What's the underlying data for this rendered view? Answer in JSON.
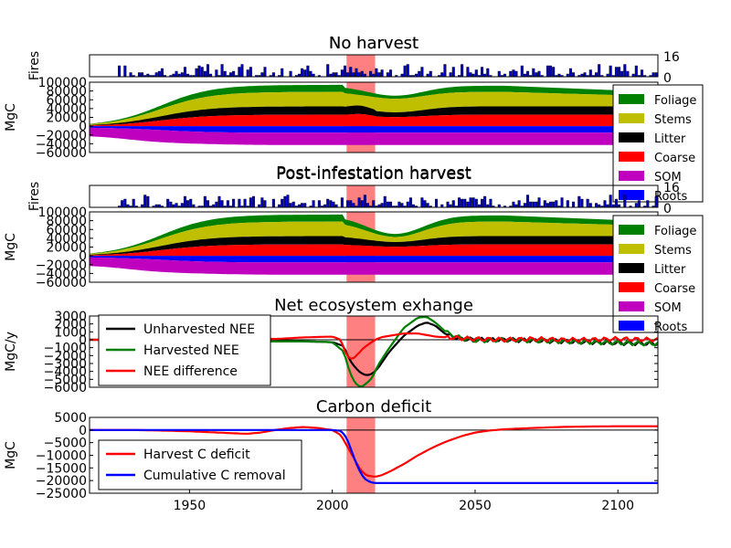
{
  "chart_data": [
    {
      "id": "fires1",
      "type": "bar",
      "ylabel": "Fires",
      "ylim": [
        0,
        16
      ],
      "right_ticks": [
        "16",
        "0"
      ]
    },
    {
      "id": "noharvest",
      "type": "area",
      "title": "No harvest",
      "ylabel": "MgC",
      "ylim": [
        -60000,
        100000
      ],
      "yticks": [
        100000,
        80000,
        60000,
        40000,
        20000,
        0,
        -20000,
        -40000,
        -60000
      ],
      "ytick_labels": [
        "100000",
        "80000",
        "60000",
        "40000",
        "20000",
        "0",
        "−20000",
        "−40000",
        "−60000"
      ],
      "legend": [
        "Foliage",
        "Stems",
        "Litter",
        "Coarse",
        "SOM",
        "Roots"
      ],
      "legend_colors": [
        "#008000",
        "#bfbf00",
        "#000000",
        "#ff0000",
        "#bf00bf",
        "#0000ff"
      ]
    },
    {
      "id": "fires2",
      "type": "bar",
      "ylabel": "Fires",
      "ylim": [
        0,
        16
      ],
      "right_ticks": [
        "16",
        "0"
      ]
    },
    {
      "id": "harvest",
      "type": "area",
      "title": "Post-infestation harvest",
      "ylabel": "MgC",
      "ylim": [
        -60000,
        100000
      ],
      "yticks": [
        100000,
        80000,
        60000,
        40000,
        20000,
        0,
        -20000,
        -40000,
        -60000
      ],
      "ytick_labels": [
        "100000",
        "80000",
        "60000",
        "40000",
        "20000",
        "0",
        "−20000",
        "−40000",
        "−60000"
      ],
      "legend": [
        "Foliage",
        "Stems",
        "Litter",
        "Coarse",
        "SOM",
        "Roots"
      ],
      "legend_colors": [
        "#008000",
        "#bfbf00",
        "#000000",
        "#ff0000",
        "#bf00bf",
        "#0000ff"
      ]
    },
    {
      "id": "nee",
      "type": "line",
      "title": "Net ecosystem exhange",
      "ylabel": "MgC/y",
      "ylim": [
        -6000,
        3000
      ],
      "yticks": [
        3000,
        2000,
        1000,
        0,
        -1000,
        -2000,
        -3000,
        -4000,
        -5000,
        -6000
      ],
      "ytick_labels": [
        "3000",
        "2000",
        "1000",
        "0",
        "−1000",
        "−2000",
        "−3000",
        "−4000",
        "−5000",
        "−6000"
      ],
      "series": [
        {
          "name": "Unharvested NEE",
          "color": "#000000",
          "x": [
            1915,
            1930,
            1950,
            1970,
            1990,
            2000,
            2004,
            2006,
            2008,
            2010,
            2012,
            2014,
            2016,
            2020,
            2025,
            2030,
            2033,
            2036,
            2040,
            2045,
            2050,
            2060,
            2070,
            2080,
            2090,
            2100,
            2114
          ],
          "y": [
            0,
            0,
            -100,
            -200,
            -200,
            -300,
            -800,
            -2500,
            -3500,
            -4200,
            -4500,
            -4300,
            -3600,
            -1500,
            500,
            1800,
            2200,
            1800,
            600,
            100,
            0,
            0,
            -100,
            -200,
            -300,
            -400,
            -500
          ]
        },
        {
          "name": "Harvested NEE",
          "color": "#008000",
          "x": [
            1915,
            1930,
            1950,
            1970,
            1990,
            2000,
            2004,
            2006,
            2008,
            2010,
            2012,
            2014,
            2016,
            2020,
            2025,
            2030,
            2033,
            2036,
            2040,
            2045,
            2050,
            2060,
            2070,
            2080,
            2090,
            2100,
            2114
          ],
          "y": [
            0,
            0,
            -100,
            -200,
            -200,
            -300,
            -1500,
            -4000,
            -5500,
            -6000,
            -5500,
            -4800,
            -3200,
            -1000,
            1500,
            2800,
            2900,
            2200,
            900,
            200,
            -100,
            0,
            -100,
            -200,
            -300,
            -400,
            -500
          ]
        },
        {
          "name": "NEE difference",
          "color": "#ff0000",
          "x": [
            1915,
            1930,
            1950,
            1970,
            1980,
            1990,
            2000,
            2003,
            2005,
            2007,
            2009,
            2011,
            2013,
            2015,
            2017,
            2020,
            2025,
            2030,
            2033,
            2036,
            2040,
            2045,
            2050,
            2060,
            2070,
            2080,
            2090,
            2100,
            2114
          ],
          "y": [
            0,
            0,
            0,
            200,
            100,
            300,
            400,
            0,
            -2000,
            -2500,
            -1800,
            -1000,
            -500,
            0,
            300,
            500,
            800,
            800,
            600,
            400,
            300,
            200,
            100,
            0,
            100,
            0,
            0,
            100,
            0
          ]
        }
      ],
      "legend_loc": "lower-left"
    },
    {
      "id": "deficit",
      "type": "line",
      "title": "Carbon deficit",
      "ylabel": "MgC",
      "xlabel": "",
      "ylim": [
        -25000,
        5000
      ],
      "yticks": [
        5000,
        0,
        -5000,
        -10000,
        -15000,
        -20000,
        -25000
      ],
      "ytick_labels": [
        "5000",
        "0",
        "−5000",
        "−10000",
        "−15000",
        "−20000",
        "−25000"
      ],
      "xlim": [
        1915,
        2114
      ],
      "xticks": [
        1950,
        2000,
        2050,
        2100
      ],
      "xtick_labels": [
        "1950",
        "2000",
        "2050",
        "2100"
      ],
      "series": [
        {
          "name": "Harvest C deficit",
          "color": "#ff0000",
          "x": [
            1915,
            1930,
            1940,
            1950,
            1960,
            1970,
            1975,
            1980,
            1985,
            1990,
            1995,
            2000,
            2003,
            2005,
            2008,
            2010,
            2012,
            2015,
            2017,
            2020,
            2025,
            2030,
            2035,
            2040,
            2045,
            2050,
            2055,
            2060,
            2070,
            2080,
            2090,
            2100,
            2114
          ],
          "y": [
            0,
            0,
            -200,
            -500,
            -1000,
            -1500,
            -1000,
            0,
            800,
            1200,
            800,
            0,
            -2000,
            -6000,
            -12000,
            -16000,
            -18000,
            -18500,
            -18000,
            -16500,
            -13500,
            -10000,
            -7000,
            -4500,
            -2500,
            -1000,
            -200,
            300,
            800,
            1200,
            1400,
            1500,
            1500
          ]
        },
        {
          "name": "Cumulative C removal",
          "color": "#0000ff",
          "x": [
            1915,
            2000,
            2003,
            2005,
            2007,
            2009,
            2011,
            2013,
            2015,
            2020,
            2114
          ],
          "y": [
            0,
            0,
            -300,
            -3000,
            -9000,
            -15000,
            -19000,
            -20500,
            -21000,
            -21000,
            -21000
          ]
        }
      ],
      "legend_loc": "lower-left"
    }
  ],
  "shaded_span": {
    "x": [
      2005,
      2015
    ],
    "color": "#ff8080"
  }
}
